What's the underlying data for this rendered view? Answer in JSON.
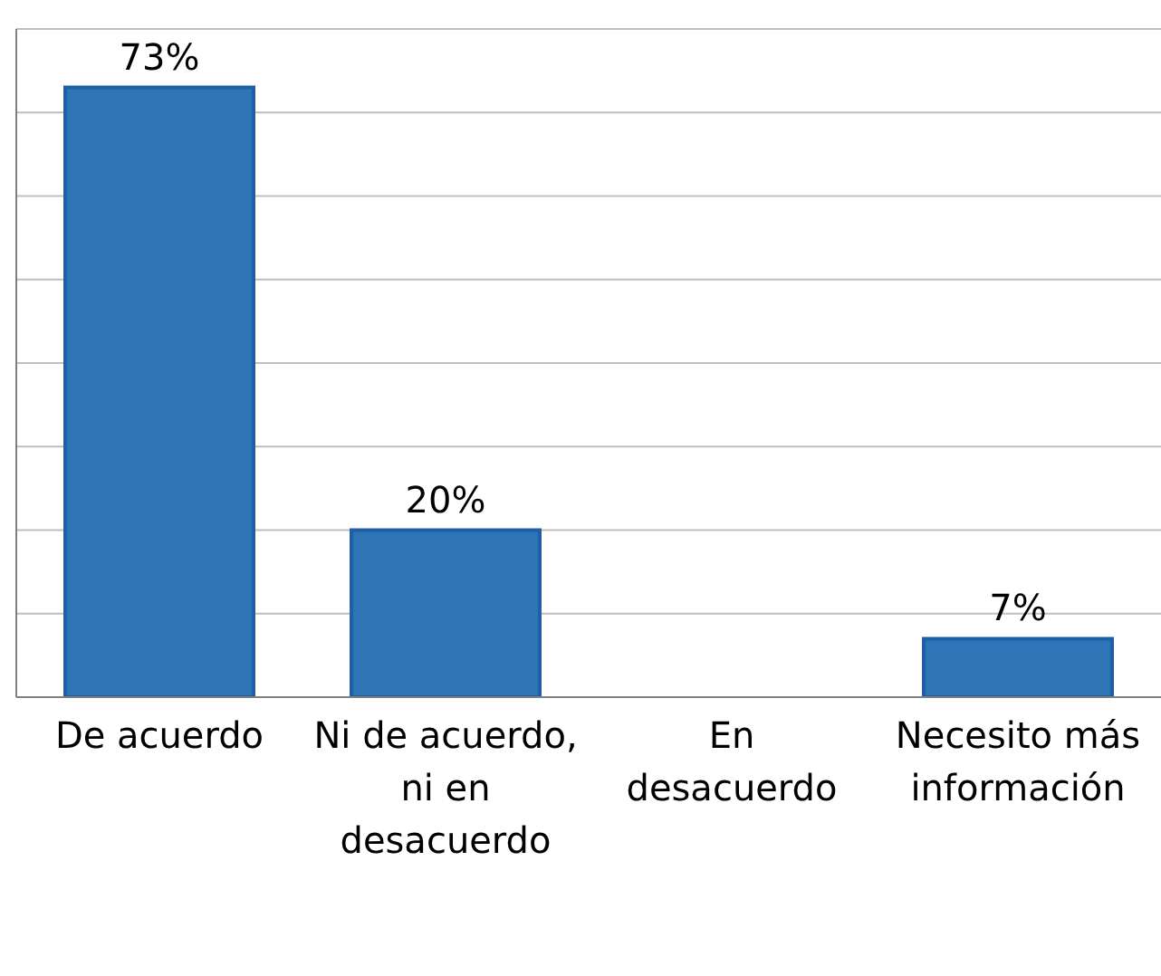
{
  "chart_data": {
    "type": "bar",
    "categories": [
      "De acuerdo",
      "Ni de acuerdo, ni en desacuerdo",
      "En desacuerdo",
      "Necesito más información"
    ],
    "values": [
      73,
      20,
      0,
      7
    ],
    "value_labels": [
      "73%",
      "20%",
      null,
      "7%"
    ],
    "color": "#2e75b6",
    "ylim": [
      0,
      80
    ],
    "yticks": [
      {
        "value": 0,
        "label": null
      },
      {
        "value": 10,
        "label": null
      },
      {
        "value": 20,
        "label": null
      },
      {
        "value": 30,
        "label": null
      },
      {
        "value": 40,
        "label": null
      },
      {
        "value": 50,
        "label": null
      },
      {
        "value": 60,
        "label": null
      },
      {
        "value": 70,
        "label": null
      },
      {
        "value": 80,
        "label": null
      }
    ],
    "grid": "y",
    "tick_labels": "x",
    "legend": false
  }
}
